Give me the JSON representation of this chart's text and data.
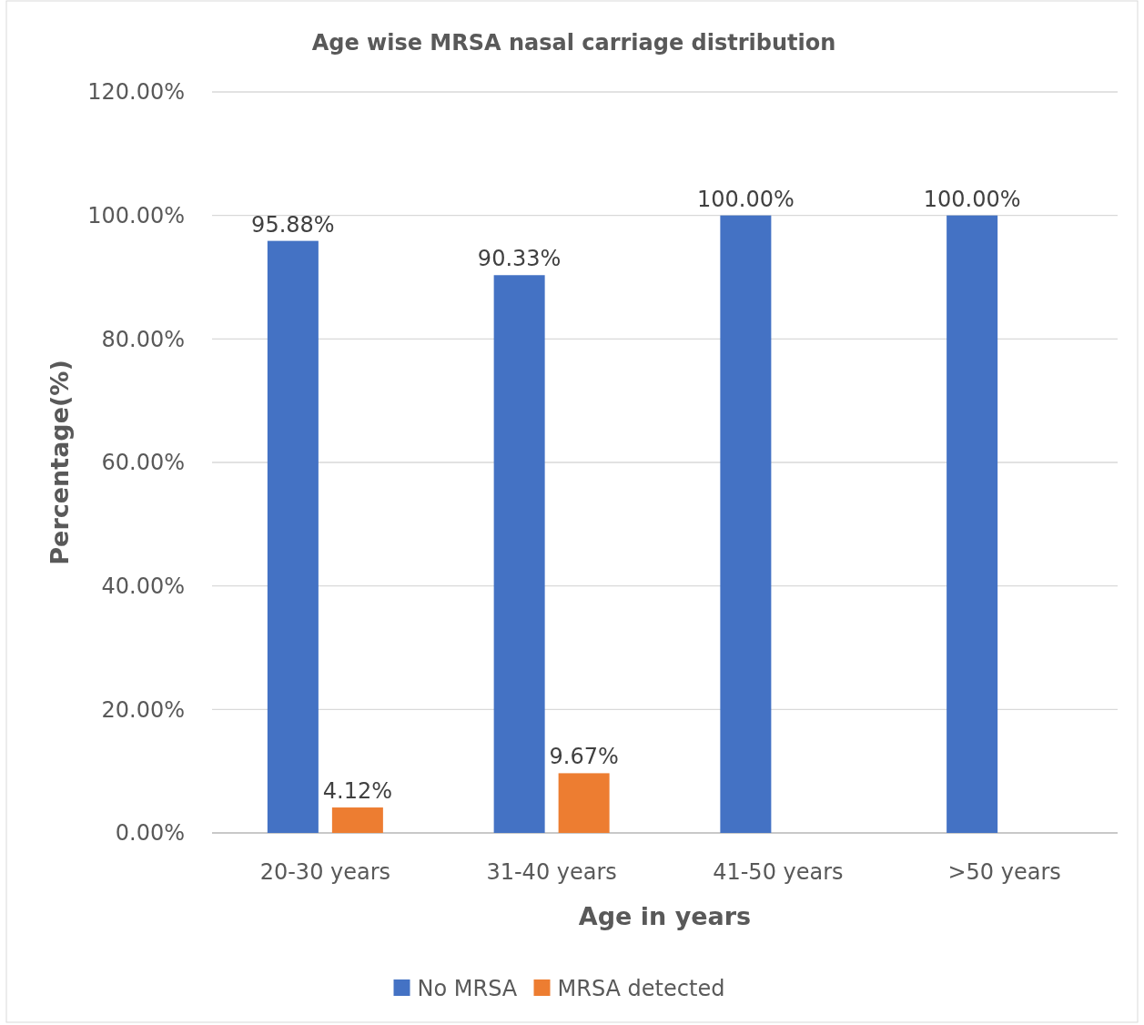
{
  "chart_data": {
    "type": "bar",
    "title": "Age wise MRSA nasal carriage distribution",
    "xlabel": "Age in years",
    "ylabel": "Percentage(%)",
    "categories": [
      "20-30 years",
      "31-40 years",
      "41-50 years",
      ">50 years"
    ],
    "series": [
      {
        "name": "No MRSA",
        "color": "#4472c4",
        "values": [
          95.88,
          90.33,
          100,
          100
        ],
        "value_labels": [
          "95.88%",
          "90.33%",
          "100.00%",
          "100.00%"
        ]
      },
      {
        "name": "MRSA detected",
        "color": "#ed7d31",
        "values": [
          4.12,
          9.67,
          0,
          0
        ],
        "value_labels": [
          "4.12%",
          "9.67%",
          null,
          null
        ]
      }
    ],
    "ylim": [
      0,
      120
    ],
    "yticks": [
      {
        "value": 0,
        "label": "0.00%"
      },
      {
        "value": 20,
        "label": "20.00%"
      },
      {
        "value": 40,
        "label": "40.00%"
      },
      {
        "value": 60,
        "label": "60.00%"
      },
      {
        "value": 80,
        "label": "80.00%"
      },
      {
        "value": 100,
        "label": "100.00%"
      },
      {
        "value": 120,
        "label": "120.00%"
      }
    ],
    "grid": "y",
    "legend": "bottom"
  }
}
